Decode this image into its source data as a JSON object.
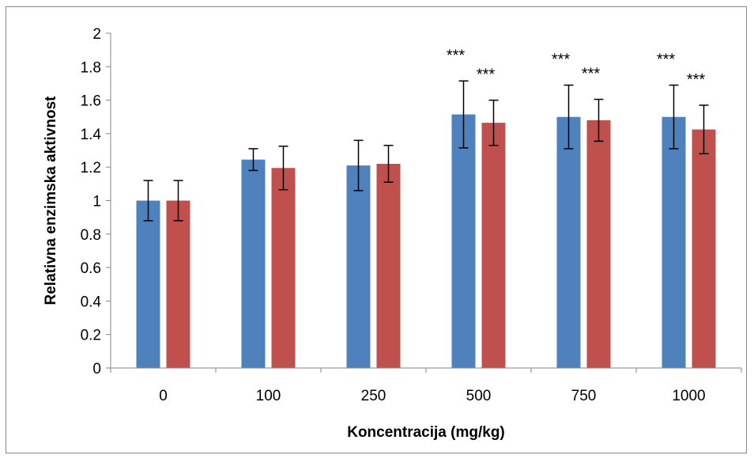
{
  "chart_data": {
    "type": "bar",
    "title": "",
    "xlabel": "Koncentracija (mg/kg)",
    "ylabel": "Relativna enzimska aktivnost",
    "ylim": [
      0,
      2
    ],
    "yticks": [
      "0",
      "0.2",
      "0.4",
      "0.6",
      "0.8",
      "1",
      "1.2",
      "1.4",
      "1.6",
      "1.8",
      "2"
    ],
    "categories": [
      "0",
      "100",
      "250",
      "500",
      "750",
      "1000"
    ],
    "grid": false,
    "legend": "none",
    "series": [
      {
        "color": "#4F81BD",
        "values": [
          1.0,
          1.245,
          1.21,
          1.515,
          1.5,
          1.5
        ],
        "errors": [
          0.12,
          0.065,
          0.15,
          0.2,
          0.19,
          0.19
        ],
        "annotations": [
          "",
          "",
          "",
          "***",
          "***",
          "***"
        ]
      },
      {
        "color": "#C0504D",
        "values": [
          1.0,
          1.195,
          1.22,
          1.465,
          1.48,
          1.425
        ],
        "errors": [
          0.12,
          0.13,
          0.11,
          0.135,
          0.125,
          0.145
        ],
        "annotations": [
          "",
          "",
          "",
          "***",
          "***",
          "***"
        ]
      }
    ]
  }
}
